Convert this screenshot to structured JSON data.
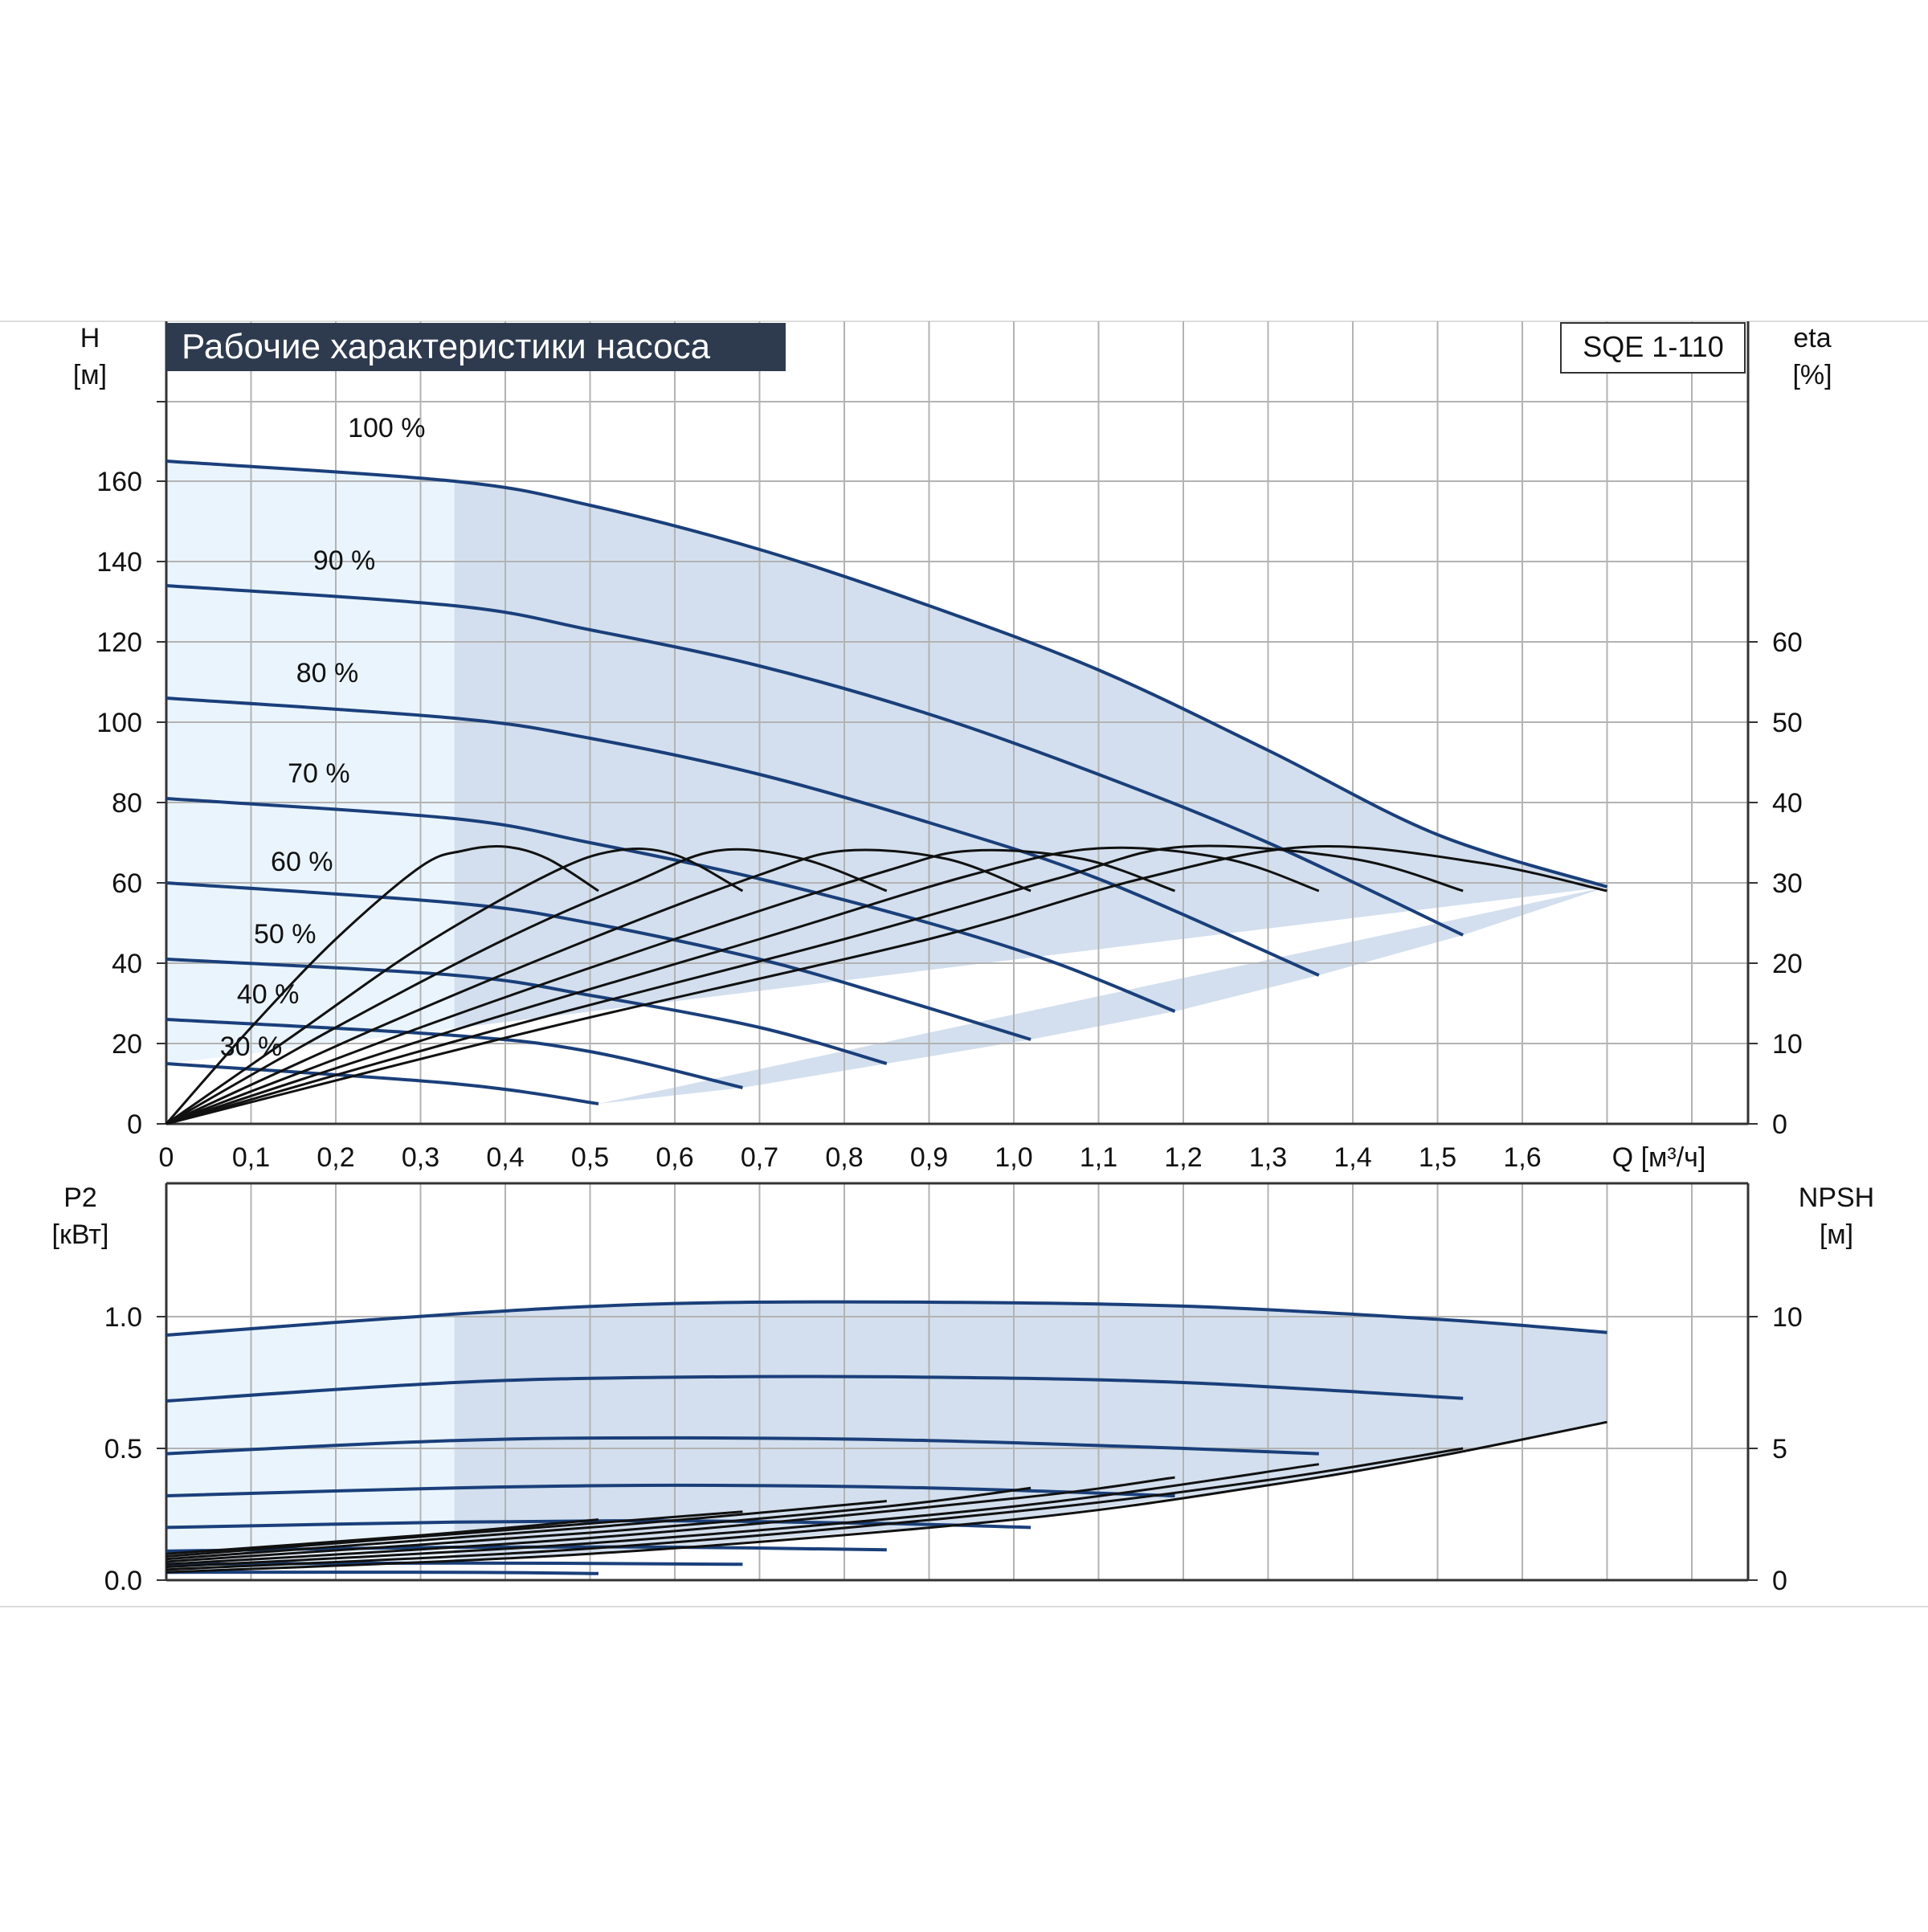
{
  "chart_data": [
    {
      "type": "line",
      "title": "Рабочие характеристики насоса",
      "model_label": "SQE 1-110",
      "left_axis_label": "H",
      "left_axis_unit": "[м]",
      "right_axis_label": "eta",
      "right_axis_unit": "[%]",
      "xlabel": "Q [м³/ч]",
      "xlim": [
        0,
        1.85
      ],
      "ylim": [
        0,
        180
      ],
      "y2lim": [
        0,
        90
      ],
      "x_ticks": [
        0,
        0.1,
        0.2,
        0.3,
        0.4,
        0.5,
        0.6,
        0.7,
        0.8,
        0.9,
        1.0,
        1.1,
        1.2,
        1.3,
        1.4,
        1.5,
        1.6
      ],
      "x_tick_labels": [
        "0",
        "0,1",
        "0,2",
        "0,3",
        "0,4",
        "0,5",
        "0,6",
        "0,7",
        "0,8",
        "0,9",
        "1,0",
        "1,1",
        "1,2",
        "1,3",
        "1,4",
        "1,5",
        "1,6"
      ],
      "y_ticks": [
        0,
        20,
        40,
        60,
        80,
        100,
        120,
        140,
        160
      ],
      "y2_ticks": [
        0,
        10,
        20,
        30,
        40,
        50,
        60
      ],
      "grid": true,
      "light_region_x": [
        0,
        0.34
      ],
      "head_curves": [
        {
          "label": "100 %",
          "label_pos": [
            0.26,
            171
          ],
          "q": [
            0,
            0.34,
            0.5,
            0.7,
            0.9,
            1.1,
            1.3,
            1.5,
            1.7
          ],
          "h": [
            165,
            160,
            154,
            143,
            129,
            113,
            93,
            72,
            59
          ]
        },
        {
          "label": "90 %",
          "label_pos": [
            0.21,
            138
          ],
          "q": [
            0,
            0.34,
            0.5,
            0.7,
            0.9,
            1.1,
            1.3,
            1.53
          ],
          "h": [
            134,
            129,
            123,
            114,
            102,
            87,
            70,
            47
          ]
        },
        {
          "label": "80 %",
          "label_pos": [
            0.19,
            110
          ],
          "q": [
            0,
            0.34,
            0.5,
            0.7,
            0.9,
            1.1,
            1.36
          ],
          "h": [
            106,
            101,
            96,
            87,
            75,
            61,
            37
          ]
        },
        {
          "label": "70 %",
          "label_pos": [
            0.18,
            85
          ],
          "q": [
            0,
            0.34,
            0.5,
            0.7,
            0.9,
            1.05,
            1.19
          ],
          "h": [
            81,
            76,
            70,
            61,
            50,
            40,
            28
          ]
        },
        {
          "label": "60 %",
          "label_pos": [
            0.16,
            63
          ],
          "q": [
            0,
            0.34,
            0.5,
            0.7,
            0.85,
            1.02
          ],
          "h": [
            60,
            55,
            50,
            41,
            32,
            21
          ]
        },
        {
          "label": "50 %",
          "label_pos": [
            0.14,
            45
          ],
          "q": [
            0,
            0.34,
            0.5,
            0.7,
            0.85
          ],
          "h": [
            41,
            37,
            32,
            24,
            15
          ]
        },
        {
          "label": "40 %",
          "label_pos": [
            0.12,
            30
          ],
          "q": [
            0,
            0.34,
            0.5,
            0.68
          ],
          "h": [
            26,
            22,
            18,
            9
          ]
        },
        {
          "label": "30 %",
          "label_pos": [
            0.1,
            17
          ],
          "q": [
            0,
            0.34,
            0.51
          ],
          "h": [
            15,
            10,
            5
          ]
        }
      ],
      "efficiency_curves": [
        {
          "q": [
            0,
            0.1,
            0.2,
            0.3,
            0.35,
            0.4,
            0.45,
            0.51
          ],
          "eta": [
            0,
            12,
            23,
            32,
            34,
            34.5,
            33,
            29
          ]
        },
        {
          "q": [
            0,
            0.15,
            0.3,
            0.45,
            0.53,
            0.6,
            0.68
          ],
          "eta": [
            0,
            11,
            22,
            31,
            34,
            33.5,
            29
          ]
        },
        {
          "q": [
            0,
            0.2,
            0.4,
            0.55,
            0.65,
            0.75,
            0.85
          ],
          "eta": [
            0,
            12,
            23,
            30,
            34,
            33,
            29
          ]
        },
        {
          "q": [
            0,
            0.25,
            0.5,
            0.7,
            0.8,
            0.92,
            1.02
          ],
          "eta": [
            0,
            12,
            23,
            31,
            34,
            33,
            29
          ]
        },
        {
          "q": [
            0,
            0.3,
            0.6,
            0.85,
            0.95,
            1.08,
            1.19
          ],
          "eta": [
            0,
            12,
            23,
            31.5,
            34,
            33,
            29
          ]
        },
        {
          "q": [
            0,
            0.35,
            0.7,
            0.95,
            1.1,
            1.25,
            1.36
          ],
          "eta": [
            0,
            12,
            23,
            31,
            34.3,
            33,
            29
          ]
        },
        {
          "q": [
            0,
            0.4,
            0.8,
            1.05,
            1.2,
            1.4,
            1.53
          ],
          "eta": [
            0,
            12,
            23,
            30.5,
            34.5,
            33,
            29
          ]
        },
        {
          "q": [
            0,
            0.45,
            0.9,
            1.15,
            1.35,
            1.55,
            1.7
          ],
          "eta": [
            0,
            12,
            23,
            30.5,
            34.5,
            32.5,
            29
          ]
        }
      ]
    },
    {
      "type": "line",
      "left_axis_label": "P2",
      "left_axis_unit": "[кВт]",
      "right_axis_label": "NPSH",
      "right_axis_unit": "[м]",
      "xlim": [
        0,
        1.85
      ],
      "ylim": [
        0,
        1.25
      ],
      "y2lim": [
        0,
        12.5
      ],
      "y_ticks": [
        0,
        0.5,
        1.0
      ],
      "y_tick_labels": [
        "0.0",
        "0.5",
        "1.0"
      ],
      "y2_ticks": [
        0,
        5,
        10
      ],
      "grid": true,
      "light_region_x": [
        0,
        0.34
      ],
      "power_curves": [
        {
          "q": [
            0,
            0.34,
            0.6,
            0.9,
            1.2,
            1.5,
            1.7
          ],
          "p": [
            0.93,
            1.01,
            1.05,
            1.055,
            1.04,
            0.99,
            0.94
          ]
        },
        {
          "q": [
            0,
            0.34,
            0.6,
            0.9,
            1.2,
            1.53
          ],
          "p": [
            0.68,
            0.75,
            0.77,
            0.77,
            0.75,
            0.69
          ]
        },
        {
          "q": [
            0,
            0.34,
            0.6,
            0.9,
            1.2,
            1.36
          ],
          "p": [
            0.48,
            0.53,
            0.54,
            0.53,
            0.5,
            0.48
          ]
        },
        {
          "q": [
            0,
            0.34,
            0.6,
            0.9,
            1.19
          ],
          "p": [
            0.32,
            0.35,
            0.36,
            0.35,
            0.32
          ]
        },
        {
          "q": [
            0,
            0.34,
            0.6,
            0.85,
            1.02
          ],
          "p": [
            0.2,
            0.22,
            0.225,
            0.215,
            0.2
          ]
        },
        {
          "q": [
            0,
            0.34,
            0.6,
            0.85
          ],
          "p": [
            0.11,
            0.125,
            0.125,
            0.115
          ]
        },
        {
          "q": [
            0,
            0.34,
            0.68
          ],
          "p": [
            0.06,
            0.065,
            0.06
          ]
        },
        {
          "q": [
            0,
            0.34,
            0.51
          ],
          "p": [
            0.03,
            0.03,
            0.025
          ]
        }
      ],
      "npsh_curves": [
        {
          "q": [
            0,
            0.5,
            1.0,
            1.3,
            1.5,
            1.7
          ],
          "npsh": [
            0.3,
            1.0,
            2.3,
            3.6,
            4.7,
            6.0
          ]
        },
        {
          "q": [
            0,
            0.5,
            1.0,
            1.3,
            1.53
          ],
          "npsh": [
            0.4,
            1.2,
            2.6,
            3.8,
            5.0
          ]
        },
        {
          "q": [
            0,
            0.5,
            1.0,
            1.36
          ],
          "npsh": [
            0.5,
            1.4,
            2.8,
            4.4
          ]
        },
        {
          "q": [
            0,
            0.5,
            1.0,
            1.19
          ],
          "npsh": [
            0.6,
            1.6,
            3.1,
            3.9
          ]
        },
        {
          "q": [
            0,
            0.5,
            0.85,
            1.02
          ],
          "npsh": [
            0.7,
            1.8,
            2.8,
            3.5
          ]
        },
        {
          "q": [
            0,
            0.5,
            0.85
          ],
          "npsh": [
            0.8,
            2.0,
            3.0
          ]
        },
        {
          "q": [
            0,
            0.4,
            0.68
          ],
          "npsh": [
            0.9,
            1.9,
            2.6
          ]
        },
        {
          "q": [
            0,
            0.3,
            0.51
          ],
          "npsh": [
            1.0,
            1.7,
            2.3
          ]
        }
      ]
    }
  ],
  "colors": {
    "title_bg": "#2e3a4e",
    "title_text": "#ffffff",
    "pump_curve": "#1a3f7a",
    "efficiency_curve": "#111111",
    "region_dark": "#d3dfee",
    "region_light": "#eaf4fd",
    "grid": "#b3b3b3",
    "axis": "#333333"
  }
}
